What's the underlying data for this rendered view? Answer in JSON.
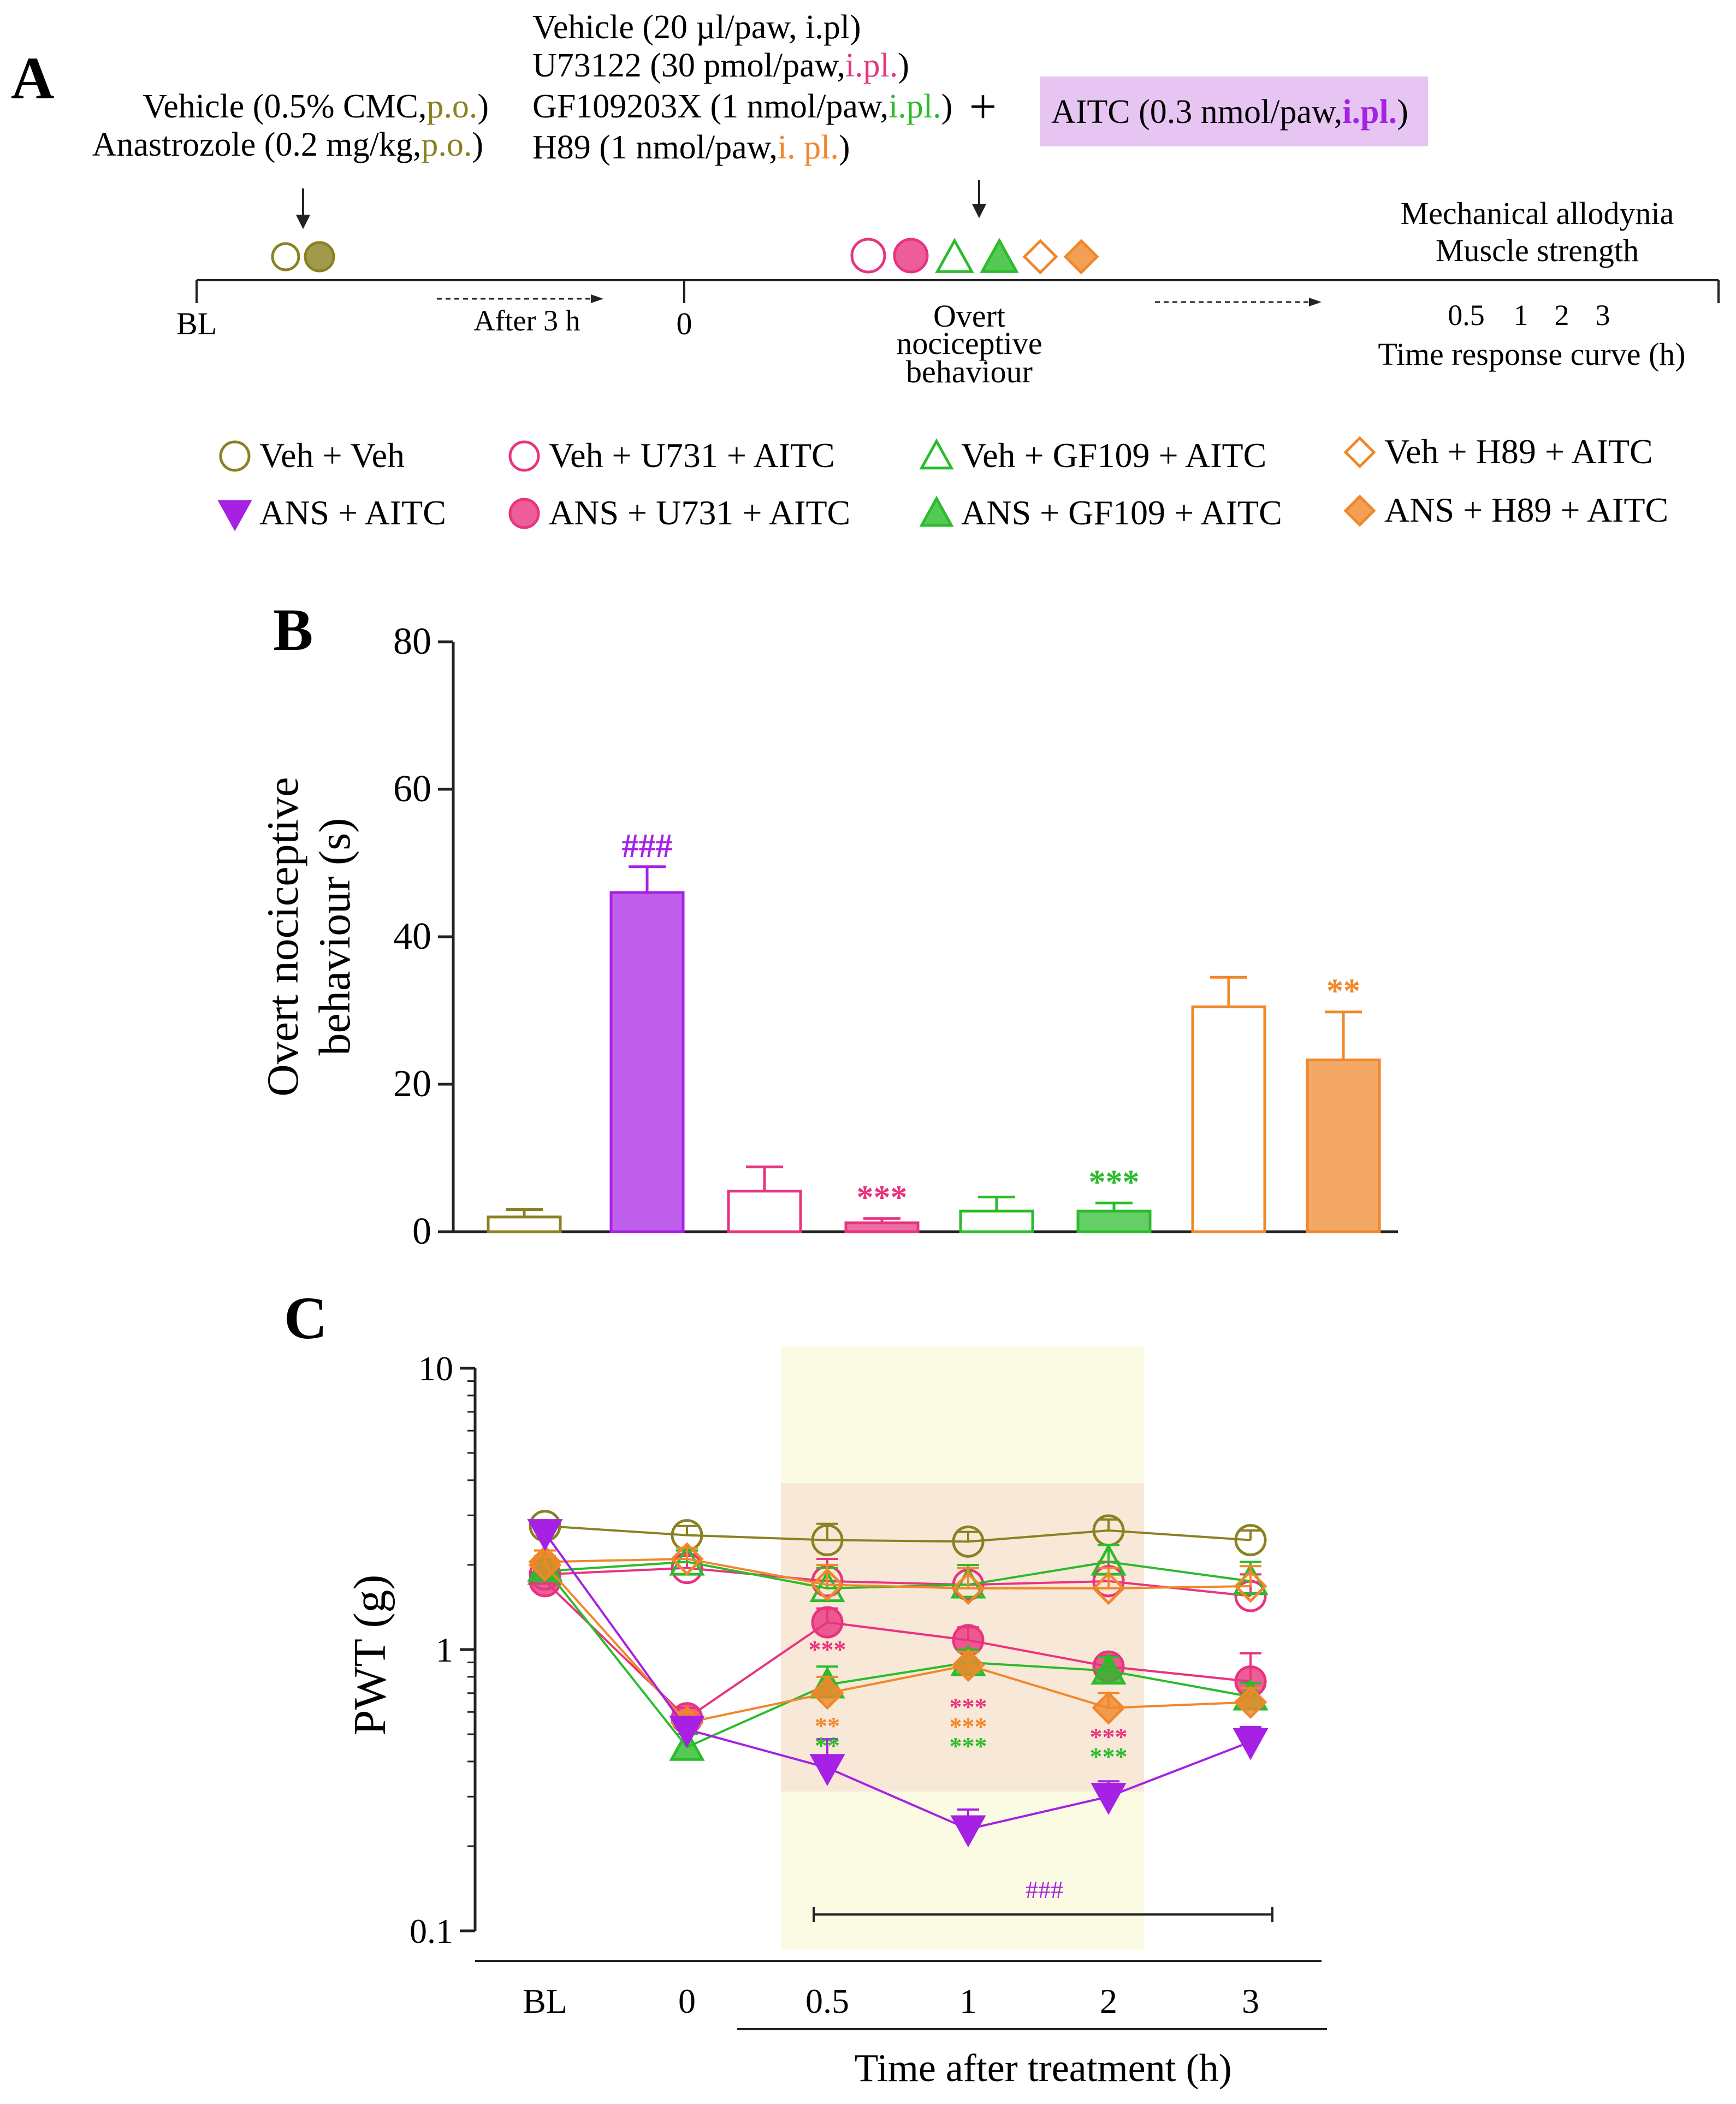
{
  "panel_labels": {
    "a": "A",
    "b": "B",
    "c": "C"
  },
  "colors": {
    "veh": "#8a8121",
    "ans": "#a621e3",
    "u731": "#e8347f",
    "gf109": "#2bbb2b",
    "h89": "#f0872a",
    "aitc_box": "#e7c5f3",
    "band_yellow": "#fbfbe3",
    "band_orange": "#f6dfd1"
  },
  "protocol": {
    "left_treatments": [
      {
        "text": "Vehicle (0.5% CMC,",
        "route": "p.o.",
        "tail": ")"
      },
      {
        "text": "Anastrozole (0.2 mg/kg,",
        "route": "p.o.",
        "tail": ")"
      }
    ],
    "right_treatments": [
      {
        "text": "Vehicle (20 µl/paw, i.pl)",
        "route": "",
        "tail": ""
      },
      {
        "text": "U73122 (30 pmol/paw,",
        "route": "i.pl.",
        "tail": ")"
      },
      {
        "text": "GF109203X (1 nmol/paw,",
        "route": "i.pl.",
        "tail": ")"
      },
      {
        "text": "H89 (1 nmol/paw,",
        "route": "i. pl.",
        "tail": ")"
      }
    ],
    "plus": "+",
    "aitc": {
      "text": "AITC (0.3 nmol/paw,",
      "route": "i.pl.",
      "tail": ")"
    },
    "timeline": {
      "bl": "BL",
      "after": "After 3 h",
      "zero": "0",
      "overt": [
        "Overt",
        "nociceptive",
        "behaviour"
      ],
      "end_top": [
        "Mechanical allodynia",
        "Muscle strength"
      ],
      "times": [
        "0.5",
        "1",
        "2",
        "3"
      ],
      "curve": "Time response curve (h)"
    }
  },
  "legend": [
    {
      "label": "Veh + Veh",
      "group": "veh",
      "marker": "circle",
      "filled": false
    },
    {
      "label": "ANS  + AITC",
      "group": "ans",
      "marker": "tri-down",
      "filled": true
    },
    {
      "label": "Veh + U731 + AITC",
      "group": "u731",
      "marker": "circle",
      "filled": false
    },
    {
      "label": "ANS + U731 + AITC",
      "group": "u731",
      "marker": "circle",
      "filled": true
    },
    {
      "label": "Veh + GF109 + AITC",
      "group": "gf109",
      "marker": "tri-up",
      "filled": false
    },
    {
      "label": "ANS + GF109 + AITC",
      "group": "gf109",
      "marker": "tri-up",
      "filled": true
    },
    {
      "label": "Veh + H89 + AITC",
      "group": "h89",
      "marker": "diamond",
      "filled": false
    },
    {
      "label": "ANS + H89 + AITC",
      "group": "h89",
      "marker": "diamond",
      "filled": true
    }
  ],
  "chart_data": [
    {
      "panel": "B",
      "type": "bar",
      "ylabel_lines": [
        "Overt nociceptive",
        "behaviour (s)"
      ],
      "ylim": [
        0,
        80
      ],
      "yticks": [
        0,
        20,
        40,
        60,
        80
      ],
      "categories": [
        "Veh + Veh",
        "ANS  + AITC",
        "Veh + U731 + AITC",
        "ANS + U731 + AITC",
        "Veh + GF109 + AITC",
        "ANS + GF109 + AITC",
        "Veh + H89 + AITC",
        "ANS + H89 + AITC"
      ],
      "groups": [
        "veh",
        "ans",
        "u731",
        "u731",
        "gf109",
        "gf109",
        "h89",
        "h89"
      ],
      "filled": [
        false,
        true,
        false,
        true,
        false,
        true,
        false,
        true
      ],
      "values": [
        2.0,
        46.0,
        5.5,
        1.2,
        2.8,
        2.8,
        30.5,
        23.3
      ],
      "errors": [
        1.0,
        3.5,
        3.3,
        0.6,
        1.9,
        1.1,
        4.0,
        6.5
      ],
      "annotations": [
        {
          "index": 1,
          "text": "###",
          "group": "ans"
        },
        {
          "index": 3,
          "text": "***",
          "group": "u731"
        },
        {
          "index": 5,
          "text": "***",
          "group": "gf109"
        },
        {
          "index": 7,
          "text": "**",
          "group": "h89"
        }
      ]
    },
    {
      "panel": "C",
      "type": "line",
      "scale": "log",
      "ylabel": "PWT (g)",
      "xlabel": "Time after treatment (h)",
      "categories": [
        "BL",
        "0",
        "0.5",
        "1",
        "2",
        "3"
      ],
      "ylim": [
        0.1,
        10
      ],
      "yticks": [
        {
          "v": 0.1,
          "t": "0.1"
        },
        {
          "v": 1,
          "t": "1"
        },
        {
          "v": 10,
          "t": "10"
        }
      ],
      "series": [
        {
          "name": "Veh + Veh",
          "group": "veh",
          "marker": "circle",
          "filled": false,
          "values": [
            2.75,
            2.55,
            2.45,
            2.42,
            2.65,
            2.45
          ],
          "errors": [
            0.12,
            0.2,
            0.35,
            0.2,
            0.25,
            0.2
          ]
        },
        {
          "name": "Veh + U731 + AITC",
          "group": "u731",
          "marker": "circle",
          "filled": false,
          "values": [
            1.85,
            1.95,
            1.75,
            1.7,
            1.75,
            1.55
          ],
          "errors": [
            0.2,
            0.2,
            0.35,
            0.3,
            0.3,
            0.3
          ]
        },
        {
          "name": "Veh + GF109 + AITC",
          "group": "gf109",
          "marker": "tri-up",
          "filled": false,
          "values": [
            1.9,
            2.05,
            1.65,
            1.7,
            2.05,
            1.75
          ],
          "errors": [
            0.2,
            0.2,
            0.3,
            0.3,
            0.3,
            0.3
          ]
        },
        {
          "name": "Veh + H89 + AITC",
          "group": "h89",
          "marker": "diamond",
          "filled": false,
          "values": [
            2.05,
            2.1,
            1.7,
            1.65,
            1.65,
            1.68
          ],
          "errors": [
            0.2,
            0.2,
            0.3,
            0.3,
            0.3,
            0.3
          ]
        },
        {
          "name": "ANS + U731 + AITC",
          "group": "u731",
          "marker": "circle",
          "filled": true,
          "values": [
            1.75,
            0.57,
            1.25,
            1.08,
            0.87,
            0.77
          ],
          "errors": [
            0.15,
            0.05,
            0.15,
            0.12,
            0.08,
            0.2
          ]
        },
        {
          "name": "ANS + GF109 + AITC",
          "group": "gf109",
          "marker": "tri-up",
          "filled": true,
          "values": [
            1.95,
            0.45,
            0.75,
            0.9,
            0.84,
            0.68
          ],
          "errors": [
            0.15,
            0.05,
            0.12,
            0.1,
            0.1,
            0.08
          ]
        },
        {
          "name": "ANS + H89 + AITC",
          "group": "h89",
          "marker": "diamond",
          "filled": true,
          "values": [
            2.0,
            0.55,
            0.7,
            0.88,
            0.62,
            0.65
          ],
          "errors": [
            0.15,
            0.05,
            0.1,
            0.1,
            0.08,
            0.08
          ]
        },
        {
          "name": "ANS  + AITC",
          "group": "ans",
          "marker": "tri-down",
          "filled": true,
          "values": [
            2.6,
            0.52,
            0.38,
            0.23,
            0.3,
            0.47
          ],
          "errors": [
            0.2,
            0.05,
            0.1,
            0.04,
            0.04,
            0.06
          ]
        }
      ],
      "annotations": [
        {
          "x": 2,
          "lines": [
            {
              "t": "***",
              "g": "u731"
            }
          ]
        },
        {
          "x": 2,
          "lines": [
            {
              "t": "**",
              "g": "h89"
            },
            {
              "t": "**",
              "g": "gf109"
            }
          ],
          "below": true
        },
        {
          "x": 3,
          "lines": [
            {
              "t": "***",
              "g": "u731"
            },
            {
              "t": "***",
              "g": "h89"
            },
            {
              "t": "***",
              "g": "gf109"
            }
          ],
          "below": true
        },
        {
          "x": 4,
          "lines": [
            {
              "t": "***",
              "g": "u731"
            },
            {
              "t": "***",
              "g": "gf109"
            }
          ],
          "below": true
        }
      ],
      "bracket": {
        "from": 2,
        "to": 5,
        "text": "###",
        "group": "ans"
      }
    }
  ]
}
